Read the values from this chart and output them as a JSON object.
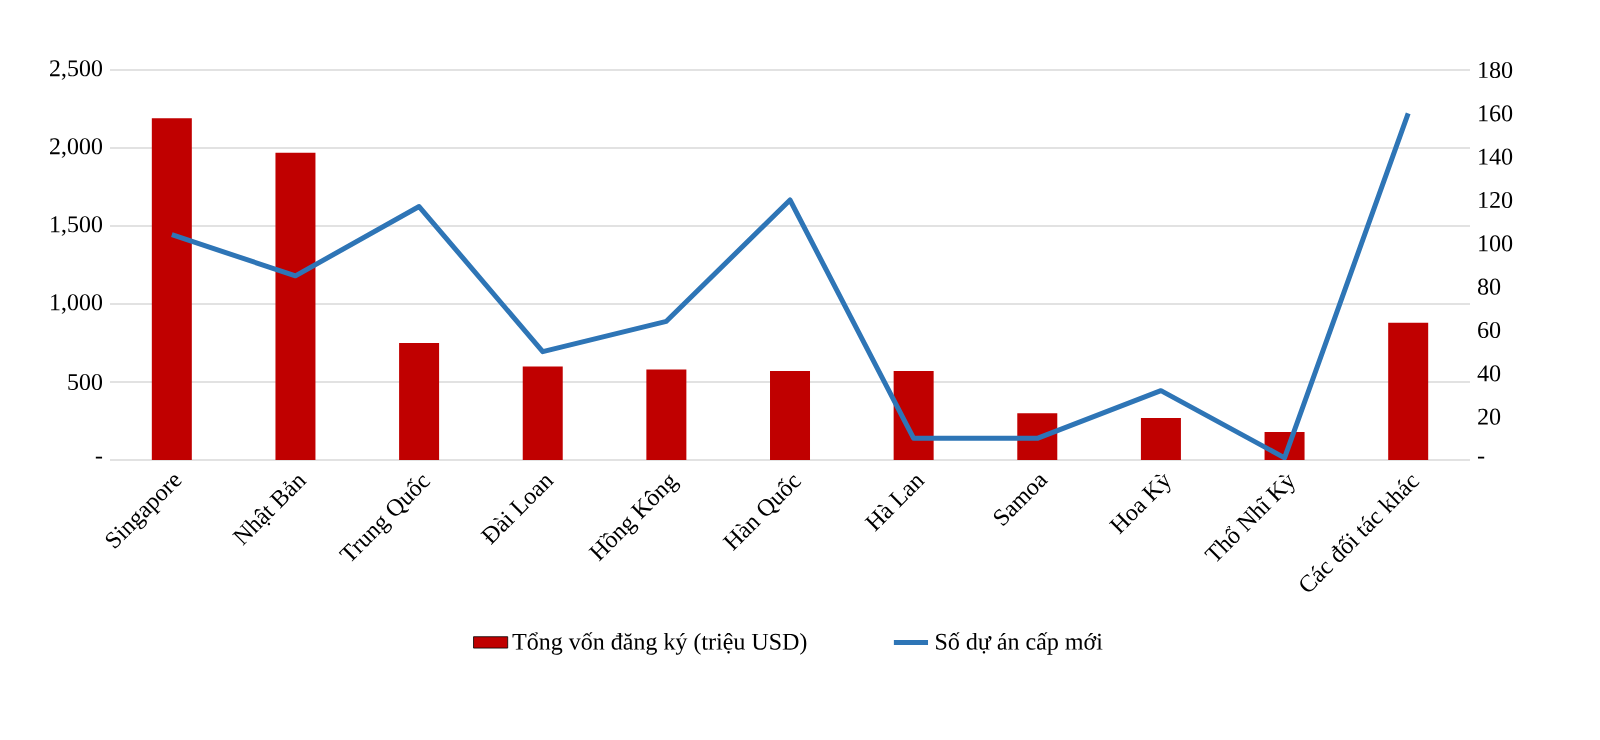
{
  "chart_data": {
    "type": "bar",
    "categories": [
      "Singapore",
      "Nhật Bản",
      "Trung Quốc",
      "Đài Loan",
      "Hồng Kông",
      "Hàn Quốc",
      "Hà Lan",
      "Samoa",
      "Hoa Kỳ",
      "Thổ Nhĩ Kỳ",
      "Các đối tác khác"
    ],
    "series": [
      {
        "name": "Tổng vốn đăng ký (triệu USD)",
        "color": "#c00000",
        "values": [
          2190,
          1970,
          750,
          600,
          580,
          570,
          570,
          300,
          270,
          180,
          880
        ]
      },
      {
        "name": "Số dự án cấp mới",
        "type": "line",
        "axis": "y2",
        "color": "#2e75b6",
        "values": [
          104,
          85,
          117,
          50,
          64,
          120,
          10,
          10,
          32,
          1,
          160
        ]
      }
    ],
    "ylim": [
      0,
      2500
    ],
    "yticks": [
      {
        "value": 0,
        "label": "-"
      },
      500,
      {
        "value": 1000,
        "label": "1,000"
      },
      {
        "value": 1500,
        "label": "1,500"
      },
      {
        "value": 2000,
        "label": "2,000"
      },
      {
        "value": 2500,
        "label": "2,500"
      }
    ],
    "y2lim": [
      0,
      180
    ],
    "y2ticks": [
      {
        "value": 0,
        "label": "-"
      },
      20,
      40,
      60,
      80,
      100,
      120,
      140,
      160,
      180
    ],
    "grid": "y",
    "legend": "bottom",
    "marker": "none"
  }
}
